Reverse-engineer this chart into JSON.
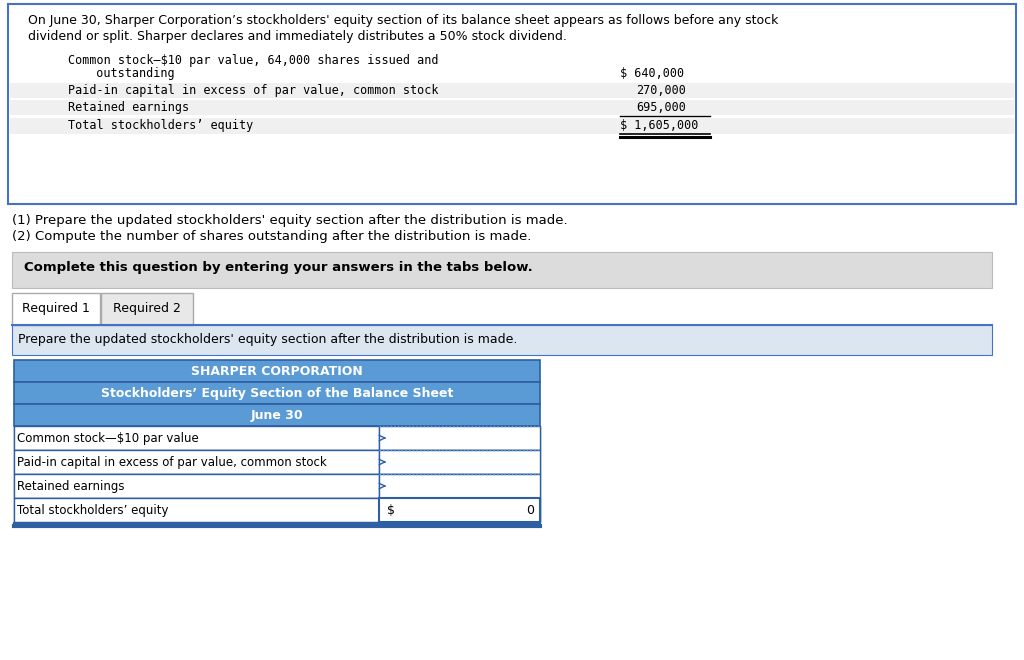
{
  "bg_color": "#ffffff",
  "intro_line1": "On June 30, Sharper Corporation’s stockholders' equity section of its balance sheet appears as follows before any stock",
  "intro_line2": "dividend or split. Sharper declares and immediately distributes a 50% stock dividend.",
  "q1": "(1) Prepare the updated stockholders' equity section after the distribution is made.",
  "q2": "(2) Compute the number of shares outstanding after the distribution is made.",
  "complete_text": "Complete this question by entering your answers in the tabs below.",
  "tab1_label": "Required 1",
  "tab2_label": "Required 2",
  "instruction_text": "Prepare the updated stockholders' equity section after the distribution is made.",
  "corp_title1": "SHARPER CORPORATION",
  "corp_title2": "Stockholders’ Equity Section of the Balance Sheet",
  "corp_title3": "June 30",
  "t1_row1a": "Common stock—$10 par value, 64,000 shares issued and",
  "t1_row1b": "  outstanding",
  "t1_row1v": "$ 640,000",
  "t1_row2": "Paid-in capital in excess of par value, common stock",
  "t1_row2v": "270,000",
  "t1_row3": "Retained earnings",
  "t1_row3v": "695,000",
  "t1_row4": "Total stockholders’ equity",
  "t1_row4v": "$ 1,605,000",
  "t2_row1": "Common stock—$10 par value",
  "t2_row2": "Paid-in capital in excess of par value, common stock",
  "t2_row3": "Retained earnings",
  "t2_row4": "Total stockholders’ equity",
  "header_bg": "#5b9bd5",
  "header_border": "#2e5fa3",
  "box_border": "#4472c4",
  "instruction_bg": "#dce6f1",
  "complete_bg": "#dcdcdc",
  "tab_inactive_bg": "#e8e8e8"
}
